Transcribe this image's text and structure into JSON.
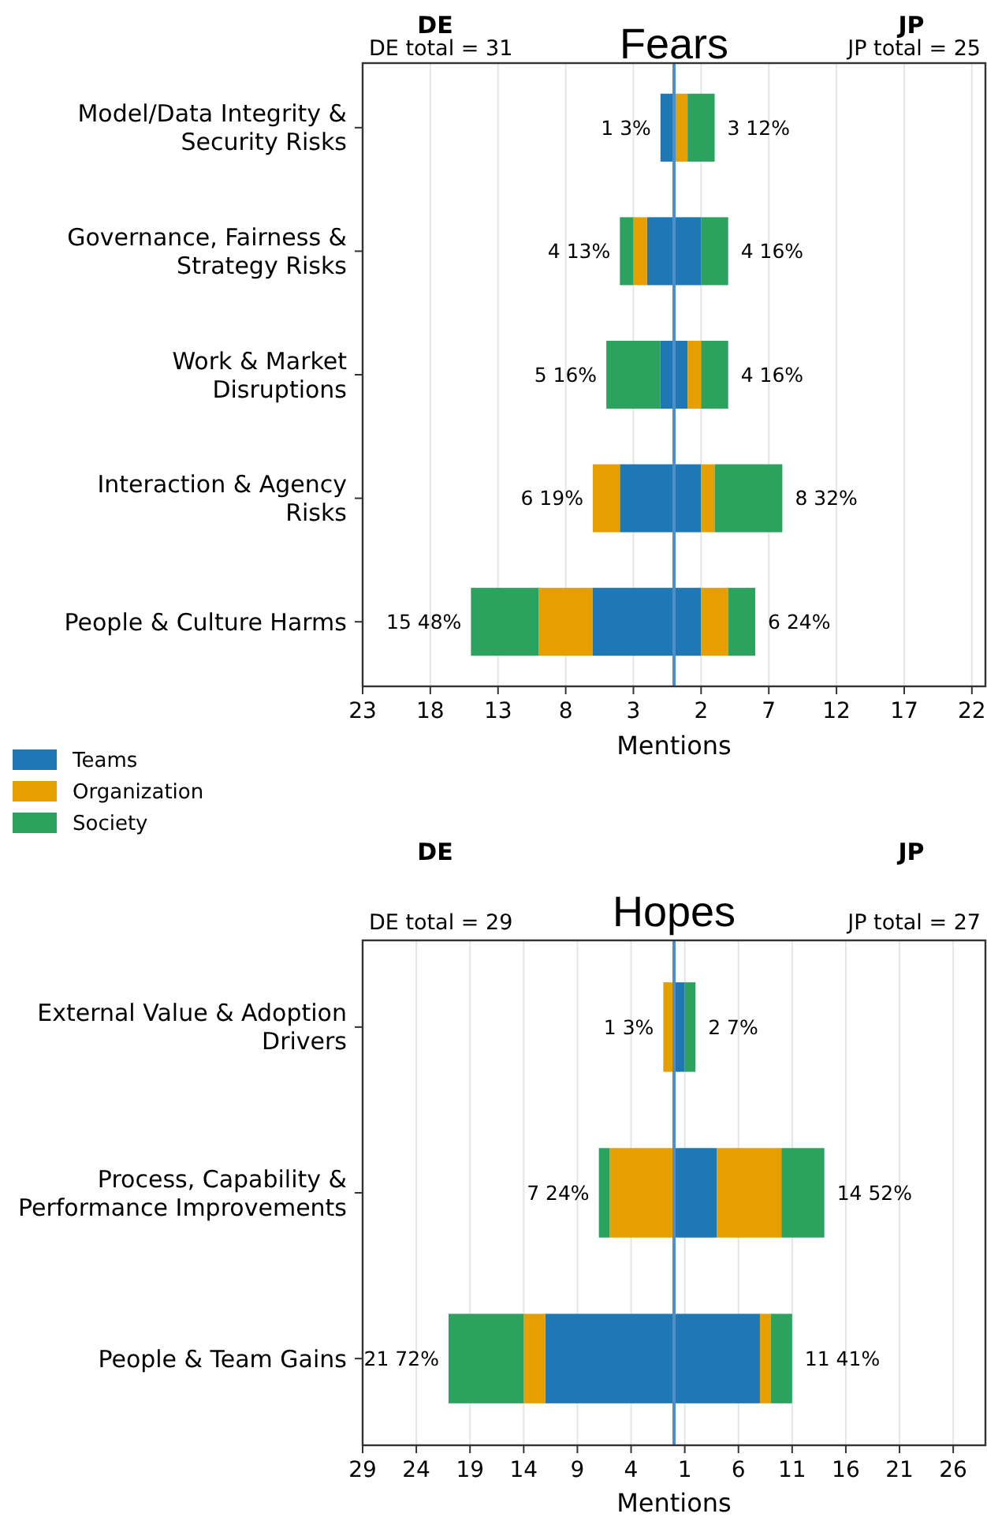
{
  "chart_data": [
    {
      "type": "bar",
      "orientation": "horizontal",
      "stacked": true,
      "title": "Fears",
      "xlabel": "Mentions",
      "categories": [
        "Model/Data Integrity &\nSecurity Risks",
        "Governance, Fairness &\nStrategy Risks",
        "Work & Market\nDisruptions",
        "Interaction & Agency\nRisks",
        "People & Culture Harms"
      ],
      "series": [
        {
          "color": "#1f77b4",
          "values": [
            -1,
            -2,
            -1,
            -4,
            -6
          ]
        },
        {
          "color": "#e69f00",
          "values": [
            0,
            -1,
            0,
            -2,
            -4
          ]
        },
        {
          "color": "#2ca25f",
          "values": [
            0,
            -1,
            -4,
            0,
            -5
          ]
        },
        {
          "name": "Teams",
          "color": "#1f77b4",
          "values": [
            0,
            2,
            1,
            2,
            2
          ]
        },
        {
          "name": "Organization",
          "color": "#e69f00",
          "values": [
            1,
            0,
            1,
            1,
            2
          ]
        },
        {
          "name": "Society",
          "color": "#2ca25f",
          "values": [
            2,
            2,
            2,
            5,
            2
          ]
        }
      ],
      "xlim": [
        -23,
        23
      ],
      "xticks": [
        {
          "value": -23,
          "label": "23"
        },
        {
          "value": -18,
          "label": "18"
        },
        {
          "value": -13,
          "label": "13"
        },
        {
          "value": -8,
          "label": "8"
        },
        {
          "value": -3,
          "label": "3"
        },
        2,
        7,
        12,
        17,
        22
      ],
      "grid": "x",
      "legend": "bottom left",
      "ref_lines": [
        {
          "axis": "x",
          "value": 0,
          "color": "#4f8fc7"
        }
      ],
      "annotations": [
        "DE",
        "JP",
        "DE total = 31",
        "JP total = 25",
        {
          "text": "1 3%",
          "x": -1,
          "y": "Model/Data Integrity &\nSecurity Risks"
        },
        {
          "text": "4 13%",
          "x": -4,
          "y": "Governance, Fairness &\nStrategy Risks"
        },
        {
          "text": "5 16%",
          "x": -5,
          "y": "Work & Market\nDisruptions"
        },
        {
          "text": "6 19%",
          "x": -6,
          "y": "Interaction & Agency\nRisks"
        },
        {
          "text": "15 48%",
          "x": -15,
          "y": "People & Culture Harms"
        },
        {
          "text": "3 12%",
          "x": 3,
          "y": "Model/Data Integrity &\nSecurity Risks"
        },
        {
          "text": "4 16%",
          "x": 4,
          "y": "Governance, Fairness &\nStrategy Risks"
        },
        {
          "text": "4 16%",
          "x": 4,
          "y": "Work & Market\nDisruptions"
        },
        {
          "text": "8 32%",
          "x": 8,
          "y": "Interaction & Agency\nRisks"
        },
        {
          "text": "6 24%",
          "x": 6,
          "y": "People & Culture Harms"
        }
      ]
    },
    {
      "type": "bar",
      "orientation": "horizontal",
      "stacked": true,
      "title": "Hopes",
      "xlabel": "Mentions",
      "categories": [
        "External Value & Adoption\nDrivers",
        "Process, Capability &\nPerformance Improvements",
        "People & Team Gains"
      ],
      "series": [
        {
          "color": "#1f77b4",
          "values": [
            0,
            0,
            -12
          ]
        },
        {
          "color": "#e69f00",
          "values": [
            -1,
            -6,
            -2
          ]
        },
        {
          "color": "#2ca25f",
          "values": [
            0,
            -1,
            -7
          ]
        },
        {
          "color": "#1f77b4",
          "values": [
            1,
            4,
            8
          ]
        },
        {
          "color": "#e69f00",
          "values": [
            0,
            6,
            1
          ]
        },
        {
          "color": "#2ca25f",
          "values": [
            1,
            4,
            2
          ]
        }
      ],
      "xlim": [
        -29,
        29
      ],
      "xticks": [
        {
          "value": -29,
          "label": "29"
        },
        {
          "value": -24,
          "label": "24"
        },
        {
          "value": -19,
          "label": "19"
        },
        {
          "value": -14,
          "label": "14"
        },
        {
          "value": -9,
          "label": "9"
        },
        {
          "value": -4,
          "label": "4"
        },
        1,
        6,
        11,
        16,
        21,
        26
      ],
      "grid": "x",
      "ref_lines": [
        {
          "axis": "x",
          "value": 0,
          "color": "#4f8fc7"
        }
      ],
      "annotations": [
        "DE",
        "JP",
        "DE total = 29",
        "JP total = 27",
        {
          "text": "1 3%",
          "x": -1,
          "y": "External Value & Adoption\nDrivers"
        },
        {
          "text": "7 24%",
          "x": -7,
          "y": "Process, Capability &\nPerformance Improvements"
        },
        {
          "text": "21 72%",
          "x": -21,
          "y": "People & Team Gains"
        },
        {
          "text": "2 7%",
          "x": 2,
          "y": "External Value & Adoption\nDrivers"
        },
        {
          "text": "14 52%",
          "x": 14,
          "y": "Process, Capability &\nPerformance Improvements"
        },
        {
          "text": "11 41%",
          "x": 11,
          "y": "People & Team Gains"
        }
      ]
    }
  ]
}
